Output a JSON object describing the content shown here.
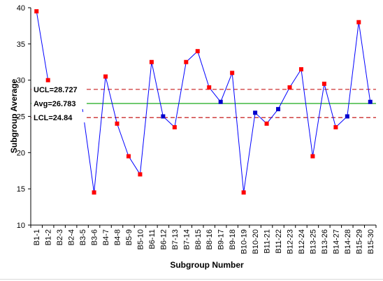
{
  "chart_data": {
    "type": "line",
    "xlabel": "Subgroup Number",
    "ylabel": "Subgroup Average",
    "ylim": [
      10,
      40
    ],
    "yticks": [
      "10",
      "15",
      "20",
      "25",
      "30",
      "35",
      "40"
    ],
    "grid": false,
    "categories": [
      "B1-1",
      "B1-2",
      "B2-3",
      "B2-4",
      "B3-5",
      "B3-6",
      "B4-7",
      "B4-8",
      "B5-9",
      "B5-10",
      "B6-11",
      "B6-12",
      "B7-13",
      "B7-14",
      "B8-15",
      "B8-16",
      "B9-17",
      "B9-18",
      "B10-19",
      "B10-20",
      "B11-21",
      "B11-22",
      "B12-23",
      "B12-24",
      "B13-25",
      "B13-26",
      "B14-27",
      "B14-28",
      "B15-29",
      "B15-30"
    ],
    "series": [
      {
        "values": [
          39.5,
          30,
          null,
          null,
          26,
          14.5,
          30.5,
          24,
          19.5,
          17,
          32.5,
          25,
          23.5,
          32.5,
          34,
          29,
          27,
          31,
          14.5,
          25.5,
          24,
          26,
          29,
          31.5,
          19.5,
          29.5,
          23.5,
          25,
          38,
          27
        ],
        "marker_colors": [
          "red",
          "red",
          "none",
          "none",
          "none",
          "red",
          "red",
          "red",
          "red",
          "red",
          "red",
          "blue",
          "red",
          "red",
          "red",
          "red",
          "blue",
          "red",
          "red",
          "blue",
          "red",
          "blue",
          "red",
          "red",
          "red",
          "red",
          "red",
          "blue",
          "red",
          "blue"
        ]
      }
    ],
    "reference_lines": [
      {
        "label": "UCL=28.727",
        "value": 28.727,
        "style": "dashed",
        "color": "#c00000"
      },
      {
        "label": "Avg=26.783",
        "value": 26.783,
        "style": "solid",
        "color": "#00a000"
      },
      {
        "label": "LCL=24.84",
        "value": 24.84,
        "style": "dashed",
        "color": "#c00000"
      }
    ],
    "colors": {
      "line": "#0000ff",
      "marker_red": "#ff0000",
      "marker_blue": "#0000cc",
      "axis": "#000000"
    }
  }
}
